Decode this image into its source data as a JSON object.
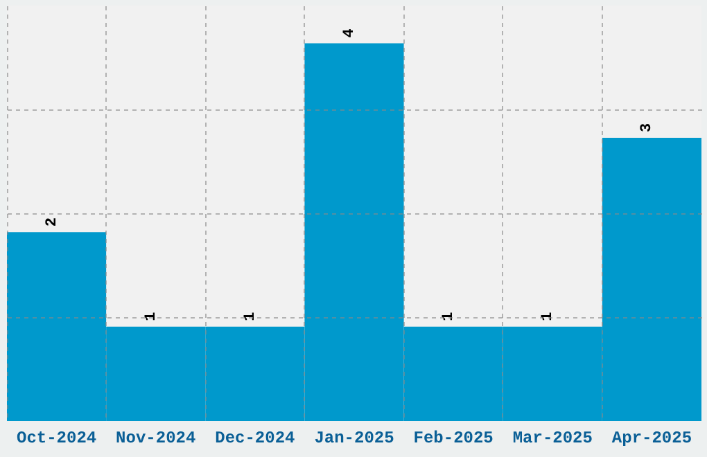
{
  "chart_data": {
    "type": "bar",
    "categories": [
      "Oct-2024",
      "Nov-2024",
      "Dec-2024",
      "Jan-2025",
      "Feb-2025",
      "Mar-2025",
      "Apr-2025"
    ],
    "values": [
      2,
      1,
      1,
      4,
      1,
      1,
      3
    ],
    "color": "#0099cc",
    "data_labels": true,
    "ylim": [
      0,
      4.4
    ],
    "yticks": [
      {
        "value": 1.1,
        "label": null
      },
      {
        "value": 2.2,
        "label": null
      },
      {
        "value": 3.3,
        "label": null
      }
    ],
    "grid": true
  }
}
